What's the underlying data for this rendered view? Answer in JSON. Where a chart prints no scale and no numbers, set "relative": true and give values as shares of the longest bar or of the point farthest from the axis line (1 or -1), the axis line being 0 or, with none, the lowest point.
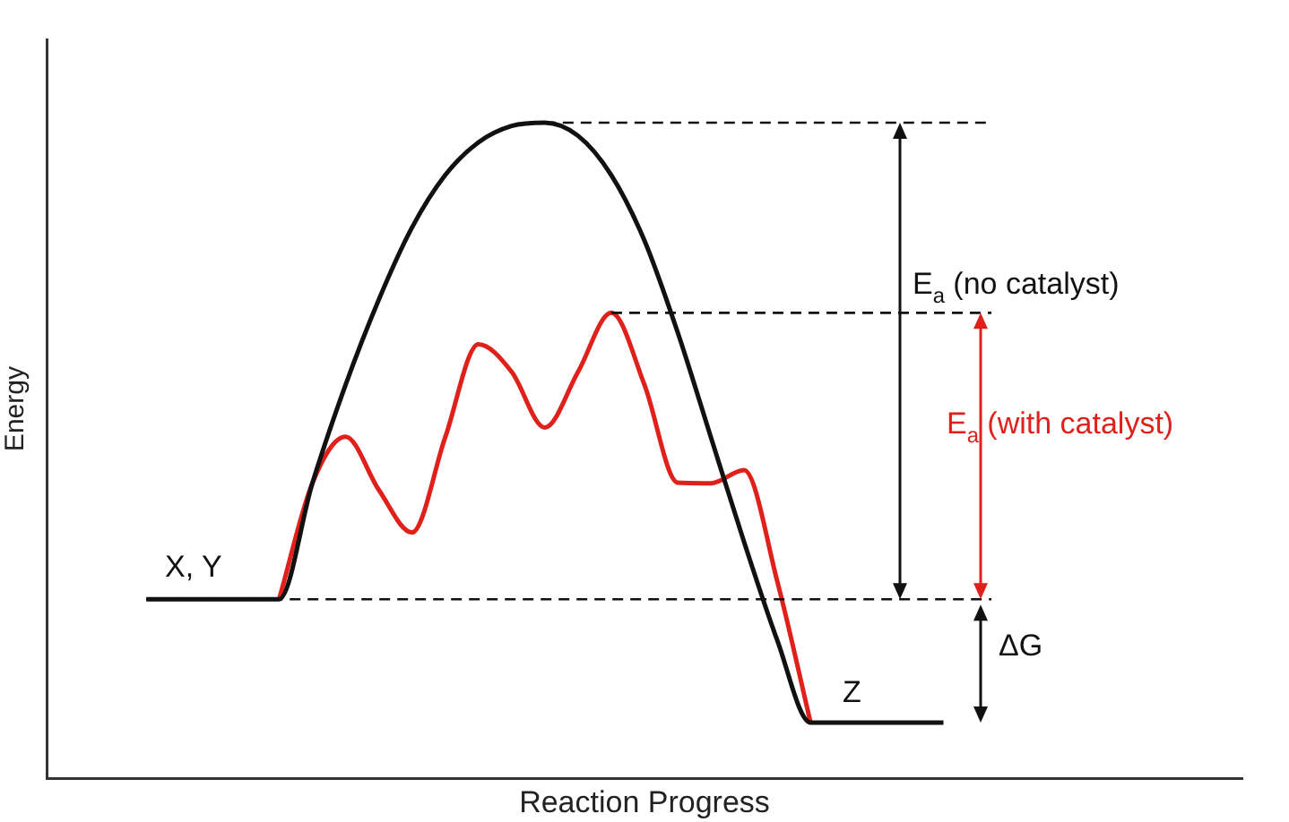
{
  "chart_data": {
    "type": "line",
    "relative": true,
    "xlabel": "Reaction Progress",
    "ylabel": "Energy",
    "categories": [
      null,
      null,
      null,
      null,
      null,
      null,
      null,
      null,
      null,
      null,
      null,
      null,
      null,
      null,
      null,
      null,
      null,
      null,
      null,
      null,
      null,
      null,
      null,
      null,
      null,
      null,
      null,
      null,
      null,
      null,
      null,
      null,
      null,
      null,
      null,
      null,
      null
    ],
    "series": [
      {
        "color": "#111111",
        "values": [
          null,
          null,
          null,
          0.273,
          0.273,
          0.273,
          0.273,
          0.273,
          0.45,
          0.6,
          0.73,
          0.84,
          0.92,
          0.97,
          0.995,
          1,
          0.98,
          0.92,
          0.82,
          0.68,
          0.52,
          0.36,
          0.21,
          0.085,
          0.085,
          0.085,
          0.085,
          0.085,
          null,
          null,
          null,
          null,
          null,
          null,
          null,
          null,
          null
        ]
      },
      {
        "color": "#e0201b",
        "values": [
          null,
          null,
          null,
          null,
          null,
          null,
          null,
          0.273,
          0.45,
          0.521,
          0.44,
          0.375,
          0.52,
          0.662,
          0.62,
          0.535,
          0.62,
          0.71,
          0.6,
          0.451,
          0.45,
          0.47,
          0.3,
          0.085,
          null,
          null,
          null,
          null,
          null,
          null,
          null,
          null,
          null,
          null,
          null,
          null,
          null
        ]
      }
    ],
    "ref_lines": [
      {
        "axis": "y",
        "value": 1,
        "color": "#111111",
        "line_style": "dashed"
      },
      {
        "axis": "y",
        "value": 0.71,
        "color": "#111111",
        "line_style": "dashed"
      },
      {
        "axis": "y",
        "value": 0.273,
        "color": "#111111",
        "line_style": "dashed"
      }
    ],
    "annotations": [
      "X, Y",
      "Z",
      "E$_{a}$ (no catalyst)",
      "E$_{a}$ (with catalyst)",
      "ΔG"
    ],
    "legend": false,
    "marker": "none",
    "line_style": "solid",
    "grid": false
  }
}
